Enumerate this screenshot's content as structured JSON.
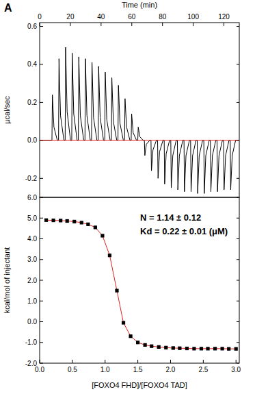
{
  "panel_label": "A",
  "chart_data": [
    {
      "type": "line",
      "x_label": "Time (min)",
      "y_label": "µcal/sec",
      "xlim": [
        0,
        130
      ],
      "ylim": [
        -0.3,
        0.62
      ],
      "xticks": [
        0,
        20,
        40,
        60,
        80,
        100,
        120
      ],
      "yticks": [
        {
          "value": -0.2,
          "label": "-0.2"
        },
        {
          "value": 0,
          "label": "0.0"
        },
        0.2,
        0.4,
        0.6
      ],
      "x": [
        0,
        8.0,
        8.3,
        9.3,
        11.5,
        12.3,
        12.6,
        13.6,
        15.8,
        16.6,
        16.9,
        17.9,
        20.1,
        20.9,
        21.2,
        22.2,
        24.4,
        25.2,
        25.5,
        26.5,
        28.7,
        29.5,
        29.8,
        30.8,
        33.0,
        33.8,
        34.1,
        35.1,
        37.3,
        38.1,
        38.4,
        39.4,
        41.6,
        42.4,
        42.7,
        43.7,
        45.9,
        46.7,
        47.0,
        48.0,
        50.2,
        51.0,
        51.3,
        52.3,
        54.5,
        55.3,
        55.6,
        56.6,
        58.8,
        59.6,
        59.9,
        60.9,
        63.1,
        63.9,
        64.2,
        65.2,
        67.4,
        68.2,
        68.5,
        69.5,
        71.7,
        72.5,
        72.8,
        73.8,
        76.0,
        76.8,
        77.1,
        78.1,
        80.3,
        81.1,
        81.4,
        82.4,
        84.6,
        85.4,
        85.7,
        86.7,
        88.9,
        89.7,
        90.0,
        91.0,
        93.2,
        94.0,
        94.3,
        95.3,
        97.5,
        98.3,
        98.6,
        99.6,
        101.8,
        102.6,
        102.9,
        103.9,
        106.1,
        106.9,
        107.2,
        108.2,
        110.4,
        111.2,
        111.5,
        112.5,
        114.7,
        115.5,
        115.8,
        116.8,
        119.0,
        119.8,
        120.1,
        121.1,
        123.3,
        124.1,
        124.4,
        125.4,
        127.6,
        130
      ],
      "series": [
        {
          "color": "#000000",
          "values": [
            0,
            0,
            0.24,
            0.07,
            0,
            0,
            0.43,
            0.13,
            0,
            0,
            0.49,
            0.15,
            0,
            0,
            0.46,
            0.14,
            0,
            0,
            0.44,
            0.13,
            0,
            0,
            0.43,
            0.13,
            0,
            0,
            0.41,
            0.12,
            0,
            0,
            0.39,
            0.12,
            0,
            0,
            0.36,
            0.11,
            0,
            0,
            0.33,
            0.1,
            0,
            0,
            0.29,
            0.09,
            0,
            0,
            0.22,
            0.07,
            0,
            0,
            0.14,
            0.04,
            0,
            0,
            0.07,
            0.02,
            0,
            0,
            -0.08,
            -0.02,
            0,
            0,
            -0.16,
            -0.05,
            0,
            0,
            -0.2,
            -0.06,
            0,
            0,
            -0.23,
            -0.07,
            0,
            0,
            -0.25,
            -0.08,
            0,
            0,
            -0.26,
            -0.08,
            0,
            0,
            -0.27,
            -0.08,
            0,
            0,
            -0.27,
            -0.08,
            0,
            0,
            -0.28,
            -0.08,
            0,
            0,
            -0.28,
            -0.08,
            0,
            0,
            -0.27,
            -0.08,
            0,
            0,
            -0.27,
            -0.08,
            0,
            0,
            -0.26,
            -0.08,
            0,
            0,
            -0.26,
            -0.08,
            0,
            0
          ]
        },
        {
          "color": "#e0201b",
          "x": [
            0,
            130
          ],
          "values": [
            0,
            0
          ]
        }
      ]
    },
    {
      "type": "scatter",
      "x_label": "[FOXO4 FHD]/[FOXO4 TAD]",
      "y_label": "kcal/mol of injectant",
      "xlim": [
        0,
        3.05
      ],
      "ylim": [
        -2,
        6
      ],
      "xticks": [
        {
          "value": 0,
          "label": "0.0"
        },
        0.5,
        {
          "value": 1,
          "label": "1.0"
        },
        1.5,
        {
          "value": 2,
          "label": "2.0"
        },
        2.5,
        {
          "value": 3,
          "label": "3.0"
        }
      ],
      "yticks": [
        {
          "value": -2,
          "label": "-2.0"
        },
        {
          "value": -1,
          "label": "-1.0"
        },
        {
          "value": 0,
          "label": "0.0"
        },
        {
          "value": 1,
          "label": "1.0"
        },
        {
          "value": 2,
          "label": "2.0"
        },
        {
          "value": 3,
          "label": "3.0"
        },
        {
          "value": 4,
          "label": "4.0"
        },
        {
          "value": 5,
          "label": "5.0"
        },
        {
          "value": 6,
          "label": "6.0"
        }
      ],
      "annotations": [
        {
          "text": "N = 1.14 ± 0.12"
        },
        {
          "text": "Kd = 0.22 ± 0.01 (μM)"
        }
      ],
      "x": [
        0.1,
        0.21,
        0.32,
        0.42,
        0.53,
        0.64,
        0.74,
        0.85,
        0.96,
        1.07,
        1.18,
        1.28,
        1.39,
        1.5,
        1.61,
        1.71,
        1.82,
        1.93,
        2.04,
        2.14,
        2.25,
        2.36,
        2.47,
        2.57,
        2.68,
        2.79,
        2.89,
        3.0
      ],
      "series": [
        {
          "type": "line",
          "color": "#e0201b",
          "values": [
            4.9,
            4.89,
            4.88,
            4.86,
            4.83,
            4.78,
            4.7,
            4.55,
            4.15,
            3.2,
            1.5,
            -0.05,
            -0.7,
            -1.0,
            -1.12,
            -1.18,
            -1.22,
            -1.25,
            -1.27,
            -1.28,
            -1.29,
            -1.3,
            -1.3,
            -1.3,
            -1.3,
            -1.3,
            -1.31,
            -1.31
          ]
        },
        {
          "type": "scatter",
          "marker": "square",
          "color": "#000000",
          "values": [
            4.9,
            4.89,
            4.88,
            4.86,
            4.83,
            4.78,
            4.7,
            4.55,
            4.15,
            3.2,
            1.5,
            -0.05,
            -0.7,
            -1.0,
            -1.12,
            -1.18,
            -1.22,
            -1.25,
            -1.27,
            -1.28,
            -1.29,
            -1.3,
            -1.3,
            -1.3,
            -1.3,
            -1.3,
            -1.31,
            -1.31
          ]
        }
      ]
    }
  ]
}
